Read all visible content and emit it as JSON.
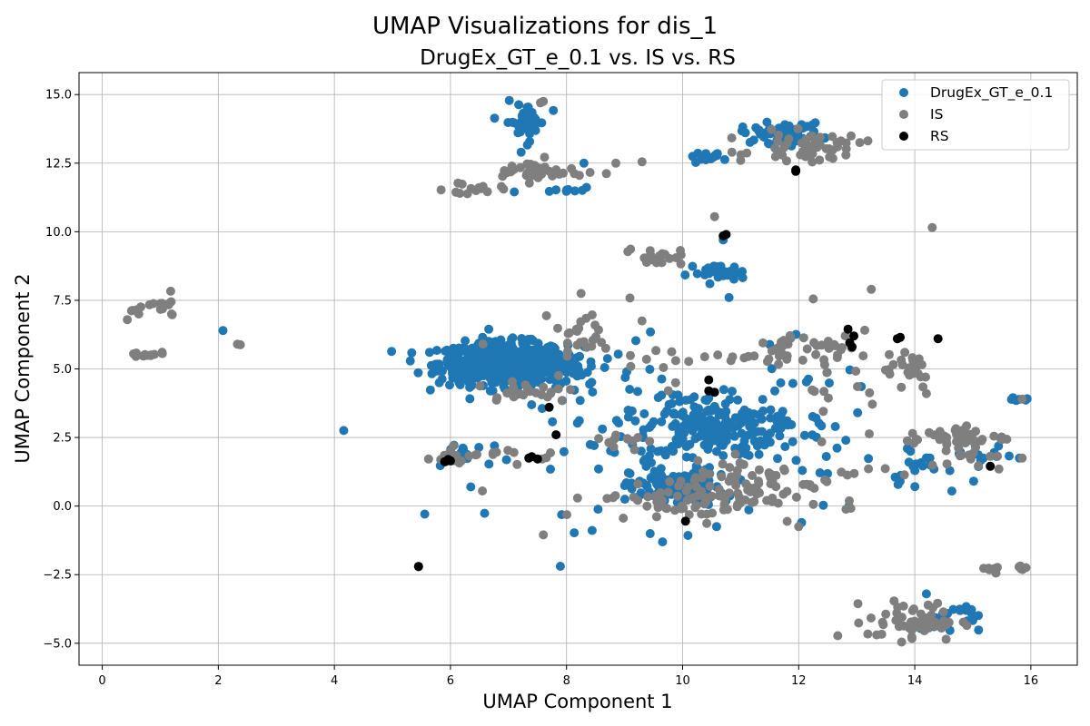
{
  "figure": {
    "suptitle": "UMAP Visualizations for dis_1"
  },
  "chart_data": {
    "type": "scatter",
    "title": "DrugEx_GT_e_0.1 vs. IS vs. RS",
    "xlabel": "UMAP Component 1",
    "ylabel": "UMAP Component 2",
    "xlim": [
      -0.4,
      16.8
    ],
    "ylim": [
      -5.8,
      15.8
    ],
    "xticks": [
      0,
      2,
      4,
      6,
      8,
      10,
      12,
      14,
      16
    ],
    "yticks": [
      -5.0,
      -2.5,
      0.0,
      2.5,
      5.0,
      7.5,
      10.0,
      12.5,
      15.0
    ],
    "xtick_labels": [
      "0",
      "2",
      "4",
      "6",
      "8",
      "10",
      "12",
      "14",
      "16"
    ],
    "ytick_labels": [
      "−5.0",
      "−2.5",
      "0.0",
      "2.5",
      "5.0",
      "7.5",
      "10.0",
      "12.5",
      "15.0"
    ],
    "grid": true,
    "legend_position": "top-right",
    "colors": {
      "DrugEx_GT_e_0.1": "#1f77b4",
      "IS": "#7f7f7f",
      "RS": "#000000"
    },
    "series": [
      {
        "name": "DrugEx_GT_e_0.1",
        "color": "#1f77b4",
        "clusters": [
          {
            "cx": 6.9,
            "cy": 5.2,
            "sx": 0.55,
            "sy": 0.38,
            "n": 520
          },
          {
            "cx": 7.6,
            "cy": 5.1,
            "sx": 0.35,
            "sy": 0.35,
            "n": 120
          },
          {
            "cx": 10.5,
            "cy": 2.9,
            "sx": 0.55,
            "sy": 0.55,
            "n": 170
          },
          {
            "cx": 9.9,
            "cy": 0.7,
            "sx": 0.4,
            "sy": 0.35,
            "n": 110
          },
          {
            "cx": 11.7,
            "cy": 13.6,
            "sx": 0.35,
            "sy": 0.18,
            "n": 55
          },
          {
            "cx": 7.3,
            "cy": 14.0,
            "sx": 0.18,
            "sy": 0.35,
            "n": 40
          },
          {
            "cx": 10.6,
            "cy": 8.5,
            "sx": 0.25,
            "sy": 0.15,
            "n": 30
          },
          {
            "cx": 10.5,
            "cy": 12.75,
            "sx": 0.2,
            "sy": 0.08,
            "n": 14
          },
          {
            "cx": 9.8,
            "cy": 2.5,
            "sx": 1.5,
            "sy": 1.6,
            "n": 110
          },
          {
            "cx": 14.6,
            "cy": -4.1,
            "sx": 0.25,
            "sy": 0.3,
            "n": 25
          },
          {
            "cx": 14.2,
            "cy": 1.2,
            "sx": 0.3,
            "sy": 0.4,
            "n": 18
          },
          {
            "cx": 15.8,
            "cy": 3.9,
            "sx": 0.15,
            "sy": 0.05,
            "n": 6
          },
          {
            "cx": 15.1,
            "cy": 1.8,
            "sx": 0.3,
            "sy": 0.15,
            "n": 12
          },
          {
            "cx": 6.3,
            "cy": 1.9,
            "sx": 0.4,
            "sy": 0.3,
            "n": 15
          },
          {
            "cx": 12.2,
            "cy": 3.0,
            "sx": 0.6,
            "sy": 1.2,
            "n": 30
          },
          {
            "cx": 8.1,
            "cy": 11.5,
            "sx": 0.15,
            "sy": 0.05,
            "n": 8
          }
        ],
        "points": [
          [
            2.08,
            6.4
          ],
          [
            12.05,
            -0.6
          ],
          [
            14.2,
            -3.2
          ],
          [
            10.7,
            9.7
          ],
          [
            10.8,
            7.6
          ],
          [
            8.3,
            12.5
          ],
          [
            7.1,
            11.45
          ],
          [
            6.35,
            0.7
          ]
        ]
      },
      {
        "name": "IS",
        "color": "#7f7f7f",
        "clusters": [
          {
            "cx": 1.05,
            "cy": 7.25,
            "sx": 0.15,
            "sy": 0.2,
            "n": 14
          },
          {
            "cx": 0.55,
            "cy": 7.0,
            "sx": 0.1,
            "sy": 0.15,
            "n": 5
          },
          {
            "cx": 0.7,
            "cy": 5.5,
            "sx": 0.2,
            "sy": 0.06,
            "n": 14
          },
          {
            "cx": 7.5,
            "cy": 12.2,
            "sx": 0.4,
            "sy": 0.2,
            "n": 40
          },
          {
            "cx": 6.4,
            "cy": 11.55,
            "sx": 0.25,
            "sy": 0.12,
            "n": 14
          },
          {
            "cx": 12.2,
            "cy": 13.1,
            "sx": 0.45,
            "sy": 0.25,
            "n": 50
          },
          {
            "cx": 9.5,
            "cy": 9.1,
            "sx": 0.25,
            "sy": 0.15,
            "n": 20
          },
          {
            "cx": 10.3,
            "cy": 0.3,
            "sx": 0.9,
            "sy": 0.4,
            "n": 90
          },
          {
            "cx": 11.8,
            "cy": 5.6,
            "sx": 0.5,
            "sy": 0.3,
            "n": 35
          },
          {
            "cx": 8.3,
            "cy": 6.3,
            "sx": 0.25,
            "sy": 0.4,
            "n": 20
          },
          {
            "cx": 14.0,
            "cy": -4.2,
            "sx": 0.4,
            "sy": 0.35,
            "n": 60
          },
          {
            "cx": 14.7,
            "cy": 2.5,
            "sx": 0.45,
            "sy": 0.2,
            "n": 40
          },
          {
            "cx": 15.45,
            "cy": -2.3,
            "sx": 0.1,
            "sy": 0.06,
            "n": 8
          },
          {
            "cx": 15.9,
            "cy": -2.25,
            "sx": 0.08,
            "sy": 0.06,
            "n": 6
          },
          {
            "cx": 13.8,
            "cy": 5.1,
            "sx": 0.3,
            "sy": 0.4,
            "n": 25
          },
          {
            "cx": 7.3,
            "cy": 4.2,
            "sx": 0.45,
            "sy": 0.2,
            "n": 25
          },
          {
            "cx": 7.0,
            "cy": 1.9,
            "sx": 0.5,
            "sy": 0.15,
            "n": 15
          },
          {
            "cx": 6.0,
            "cy": 1.7,
            "sx": 0.3,
            "sy": 0.1,
            "n": 10
          },
          {
            "cx": 11.2,
            "cy": 1.0,
            "sx": 0.6,
            "sy": 0.5,
            "n": 40
          },
          {
            "cx": 15.0,
            "cy": 1.8,
            "sx": 0.4,
            "sy": 0.2,
            "n": 12
          },
          {
            "cx": 9.0,
            "cy": 2.4,
            "sx": 0.3,
            "sy": 0.15,
            "n": 10
          },
          {
            "cx": 12.9,
            "cy": 4.5,
            "sx": 0.5,
            "sy": 1.0,
            "n": 15
          },
          {
            "cx": 13.0,
            "cy": 1.3,
            "sx": 0.3,
            "sy": 0.2,
            "n": 6
          },
          {
            "cx": 9.8,
            "cy": 5.6,
            "sx": 1.4,
            "sy": 0.8,
            "n": 25
          }
        ],
        "points": [
          [
            2.38,
            5.88
          ],
          [
            2.33,
            5.9
          ],
          [
            7.6,
            -1.05
          ],
          [
            10.55,
            10.55
          ],
          [
            14.3,
            10.15
          ],
          [
            13.25,
            7.9
          ],
          [
            12.25,
            7.55
          ],
          [
            11.0,
            12.6
          ],
          [
            10.85,
            12.9
          ],
          [
            9.3,
            12.55
          ],
          [
            8.85,
            12.5
          ],
          [
            6.55,
            0.55
          ],
          [
            12.45,
            0.95
          ],
          [
            15.85,
            3.9
          ],
          [
            15.85,
            1.75
          ],
          [
            15.45,
            1.35
          ],
          [
            14.2,
            4.1
          ],
          [
            8.25,
            7.75
          ],
          [
            9.3,
            6.75
          ],
          [
            12.0,
            -0.75
          ],
          [
            7.55,
            14.7
          ],
          [
            7.6,
            14.75
          ]
        ]
      },
      {
        "name": "RS",
        "color": "#000000",
        "points": [
          [
            5.45,
            -2.2
          ],
          [
            5.45,
            -2.2
          ],
          [
            5.96,
            1.7
          ],
          [
            5.9,
            1.62
          ],
          [
            6.0,
            1.65
          ],
          [
            7.35,
            1.75
          ],
          [
            7.5,
            1.72
          ],
          [
            7.4,
            1.8
          ],
          [
            7.7,
            3.6
          ],
          [
            7.82,
            2.6
          ],
          [
            10.45,
            4.6
          ],
          [
            10.45,
            4.2
          ],
          [
            10.55,
            4.15
          ],
          [
            10.05,
            -0.55
          ],
          [
            10.7,
            9.85
          ],
          [
            10.75,
            9.9
          ],
          [
            11.95,
            12.2
          ],
          [
            11.95,
            12.25
          ],
          [
            12.85,
            6.45
          ],
          [
            12.95,
            6.2
          ],
          [
            12.92,
            5.8
          ],
          [
            12.88,
            5.95
          ],
          [
            13.7,
            6.1
          ],
          [
            13.75,
            6.15
          ],
          [
            14.4,
            6.1
          ],
          [
            15.3,
            1.45
          ]
        ]
      }
    ]
  }
}
